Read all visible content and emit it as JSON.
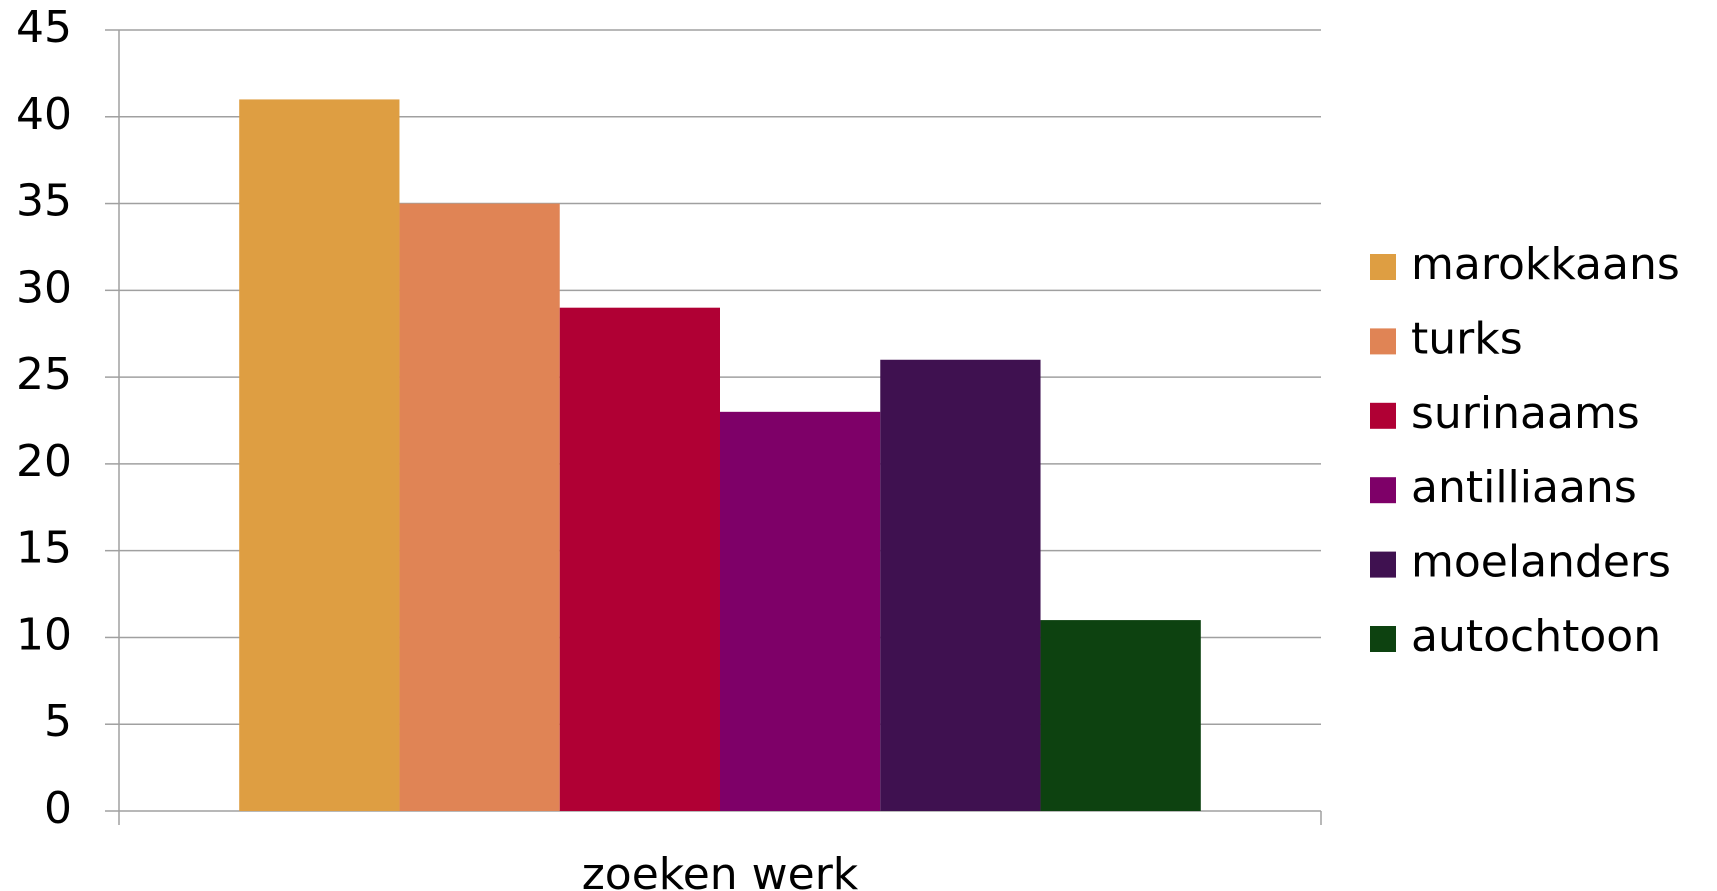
{
  "chart_data": {
    "type": "bar",
    "categories": [
      "zoeken werk"
    ],
    "series": [
      {
        "name": "marokkaans",
        "color": "#de9e42",
        "values": [
          41
        ]
      },
      {
        "name": "turks",
        "color": "#e08455",
        "values": [
          35
        ]
      },
      {
        "name": "surinaams",
        "color": "#b00034",
        "values": [
          29
        ]
      },
      {
        "name": "antilliaans",
        "color": "#7e0068",
        "values": [
          23
        ]
      },
      {
        "name": "moelanders",
        "color": "#3f1150",
        "values": [
          26
        ]
      },
      {
        "name": "autochtoon",
        "color": "#0d4210",
        "values": [
          11
        ]
      }
    ],
    "ylim": [
      0,
      45
    ],
    "yticks": [
      0,
      5,
      10,
      15,
      20,
      25,
      30,
      35,
      40,
      45
    ],
    "grid": true,
    "legend": "right"
  }
}
